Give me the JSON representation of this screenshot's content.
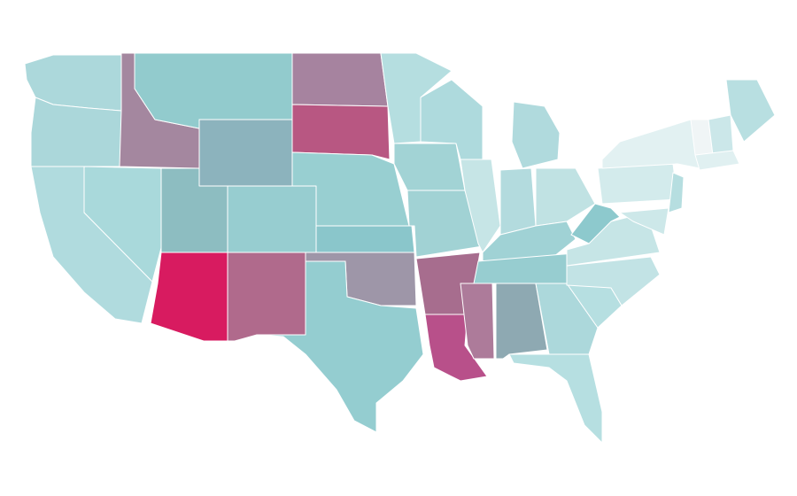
{
  "map": {
    "region_colors": [
      "#acd8db",
      "#abd7da",
      "#b0dbde",
      "#a9d9db",
      "#a4879f",
      "#92cbcd",
      "#8cb3bd",
      "#8dbdc1",
      "#97cdd0",
      "#d81b60",
      "#b06a8c",
      "#a6839f",
      "#b85782",
      "#98cfd1",
      "#8ac6cb",
      "#9e96a8",
      "#94cdd0",
      "#b5dee0",
      "#a2d3d5",
      "#a1d2d4",
      "#a76d8e",
      "#b8508a",
      "#aedadd",
      "#c6e5e6",
      "#b0dadd",
      "#b3dbde",
      "#c0e2e3",
      "#a0d2d5",
      "#97cdd0",
      "#ad7b9a",
      "#8ea9b2",
      "#acd8db",
      "#b6dfe1",
      "#b6dfe1",
      "#c2e3e5",
      "#c6e5e6",
      "#8dc9cd",
      "#d3ebec",
      "#e2f1f2",
      "#b8dfe1",
      "#f0f5f6",
      "#cbe7e9",
      "#e0f0f1",
      "#b6dee0",
      "#cde8e9"
    ]
  }
}
